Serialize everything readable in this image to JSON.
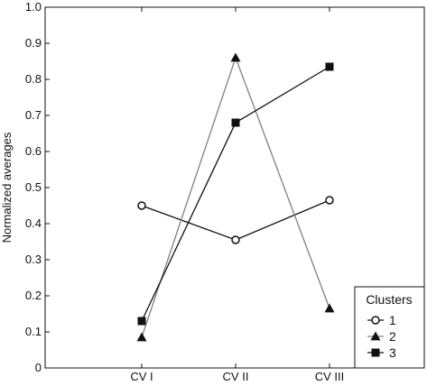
{
  "chart_data": {
    "type": "line",
    "categories": [
      "CV I",
      "CV II",
      "CV III"
    ],
    "series": [
      {
        "name": "1",
        "values": [
          0.45,
          0.355,
          0.465
        ],
        "marker": "circle-open",
        "color": "#111111",
        "line_color": "#111111"
      },
      {
        "name": "2",
        "values": [
          0.085,
          0.86,
          0.165
        ],
        "marker": "triangle",
        "color": "#111111",
        "line_color": "#808080"
      },
      {
        "name": "3",
        "values": [
          0.13,
          0.68,
          0.835
        ],
        "marker": "square",
        "color": "#111111",
        "line_color": "#111111"
      }
    ],
    "ylabel": "Normalized averages",
    "xlabel": "",
    "ylim": [
      0,
      1.0
    ],
    "yticks": [
      "0",
      "0.1",
      "0.2",
      "0.3",
      "0.4",
      "0.5",
      "0.6",
      "0.7",
      "0.8",
      "0.9",
      "1.0"
    ],
    "grid": false,
    "legend": {
      "title": "Clusters",
      "placement": "bottom-right"
    }
  }
}
